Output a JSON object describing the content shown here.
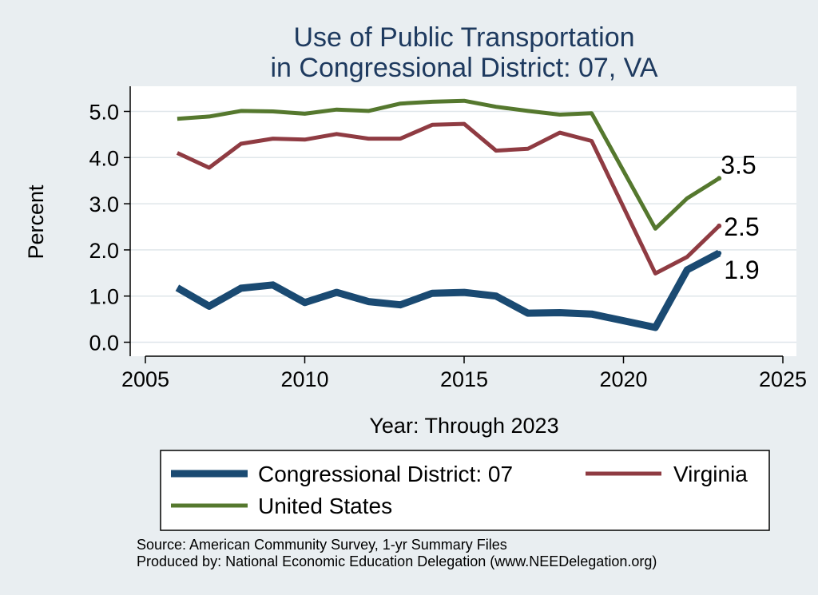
{
  "chart_data": {
    "type": "line",
    "title": [
      "Use of Public Transportation",
      "in Congressional District: 07, VA"
    ],
    "xlabel": "Year: Through 2023",
    "ylabel": "Percent",
    "xlim": [
      2005,
      2025
    ],
    "ylim": [
      0,
      5.3
    ],
    "xticks": [
      2005,
      2010,
      2015,
      2020,
      2025
    ],
    "yticks": [
      0,
      1,
      2,
      3,
      4,
      5
    ],
    "ytick_labels": [
      "0.0",
      "1.0",
      "2.0",
      "3.0",
      "4.0",
      "5.0"
    ],
    "grid": true,
    "legend_position": "bottom",
    "x": [
      2006,
      2007,
      2008,
      2009,
      2010,
      2011,
      2012,
      2013,
      2014,
      2015,
      2016,
      2017,
      2018,
      2019,
      2021,
      2022,
      2023
    ],
    "series": [
      {
        "name": "Congressional District: 07",
        "color": "#1a4a72",
        "values": [
          1.18,
          0.78,
          1.17,
          1.24,
          0.86,
          1.08,
          0.88,
          0.81,
          1.06,
          1.08,
          1.0,
          0.63,
          0.64,
          0.61,
          0.32,
          1.57,
          1.93
        ],
        "end_label": "1.9"
      },
      {
        "name": "Virginia",
        "color": "#8f3b42",
        "values": [
          4.1,
          3.78,
          4.3,
          4.41,
          4.39,
          4.51,
          4.41,
          4.41,
          4.71,
          4.73,
          4.15,
          4.19,
          4.54,
          4.36,
          1.49,
          1.85,
          2.52
        ],
        "end_label": "2.5"
      },
      {
        "name": "United States",
        "color": "#55782e",
        "values": [
          4.84,
          4.89,
          5.01,
          5.0,
          4.95,
          5.04,
          5.01,
          5.17,
          5.21,
          5.23,
          5.1,
          5.01,
          4.93,
          4.96,
          2.46,
          3.12,
          3.55
        ],
        "end_label": "3.5"
      }
    ]
  },
  "notes": {
    "source": "Source: American Community Survey, 1-yr Summary Files",
    "producer": "Produced by: National Economic Education Delegation (www.NEEDelegation.org)"
  }
}
